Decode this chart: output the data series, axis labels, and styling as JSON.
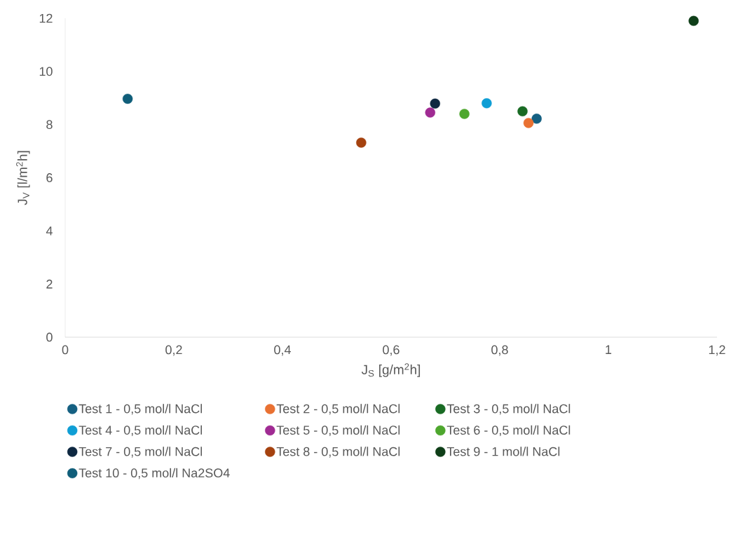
{
  "chart_data": {
    "type": "scatter",
    "xlabel": "J$_{S}$ [g/m$^{2}$h]",
    "ylabel": "J$_{V}$ [l/m$^{2}$h]",
    "xlim": [
      0,
      1.2
    ],
    "xticks": [
      0,
      {
        "value": 0.2,
        "label": "0,2"
      },
      {
        "value": 0.4,
        "label": "0,4"
      },
      {
        "value": 0.6,
        "label": "0,6"
      },
      {
        "value": 0.8,
        "label": "0,8"
      },
      1,
      {
        "value": 1.2,
        "label": "1,2"
      }
    ],
    "ylim": [
      0,
      12
    ],
    "yticks": [
      0,
      2,
      4,
      6,
      8,
      10,
      12
    ],
    "marker": "circle",
    "legend": "bottom",
    "series": [
      {
        "name": "Test 1 - 0,5 mol/l NaCl",
        "color": "#156082",
        "x": [
          0.868
        ],
        "values": [
          8.22
        ]
      },
      {
        "name": "Test 2 - 0,5 mol/l NaCl",
        "color": "#e97132",
        "x": [
          0.853
        ],
        "values": [
          8.06
        ]
      },
      {
        "name": "Test 3 - 0,5 mol/l NaCl",
        "color": "#196b24",
        "x": [
          0.842
        ],
        "values": [
          8.5
        ]
      },
      {
        "name": "Test 4 - 0,5 mol/l NaCl",
        "color": "#0f9ed5",
        "x": [
          0.776
        ],
        "values": [
          8.8
        ]
      },
      {
        "name": "Test 5 - 0,5 mol/l NaCl",
        "color": "#a02b93",
        "x": [
          0.672
        ],
        "values": [
          8.45
        ]
      },
      {
        "name": "Test 6 - 0,5 mol/l NaCl",
        "color": "#4ea72e",
        "x": [
          0.735
        ],
        "values": [
          8.4
        ]
      },
      {
        "name": "Test 7 - 0,5 mol/l NaCl",
        "color": "#0e2841",
        "x": [
          0.681
        ],
        "values": [
          8.79
        ]
      },
      {
        "name": "Test 8 - 0,5 mol/l NaCl",
        "color": "#a5420f",
        "x": [
          0.545
        ],
        "values": [
          7.32
        ]
      },
      {
        "name": "Test 9 - 1 mol/l NaCl",
        "color": "#0f3e18",
        "x": [
          1.157
        ],
        "values": [
          11.9
        ]
      },
      {
        "name": "Test 10 - 0,5 mol/l Na2SO4",
        "color": "#105e7a",
        "x": [
          0.115
        ],
        "values": [
          8.97
        ]
      }
    ]
  }
}
